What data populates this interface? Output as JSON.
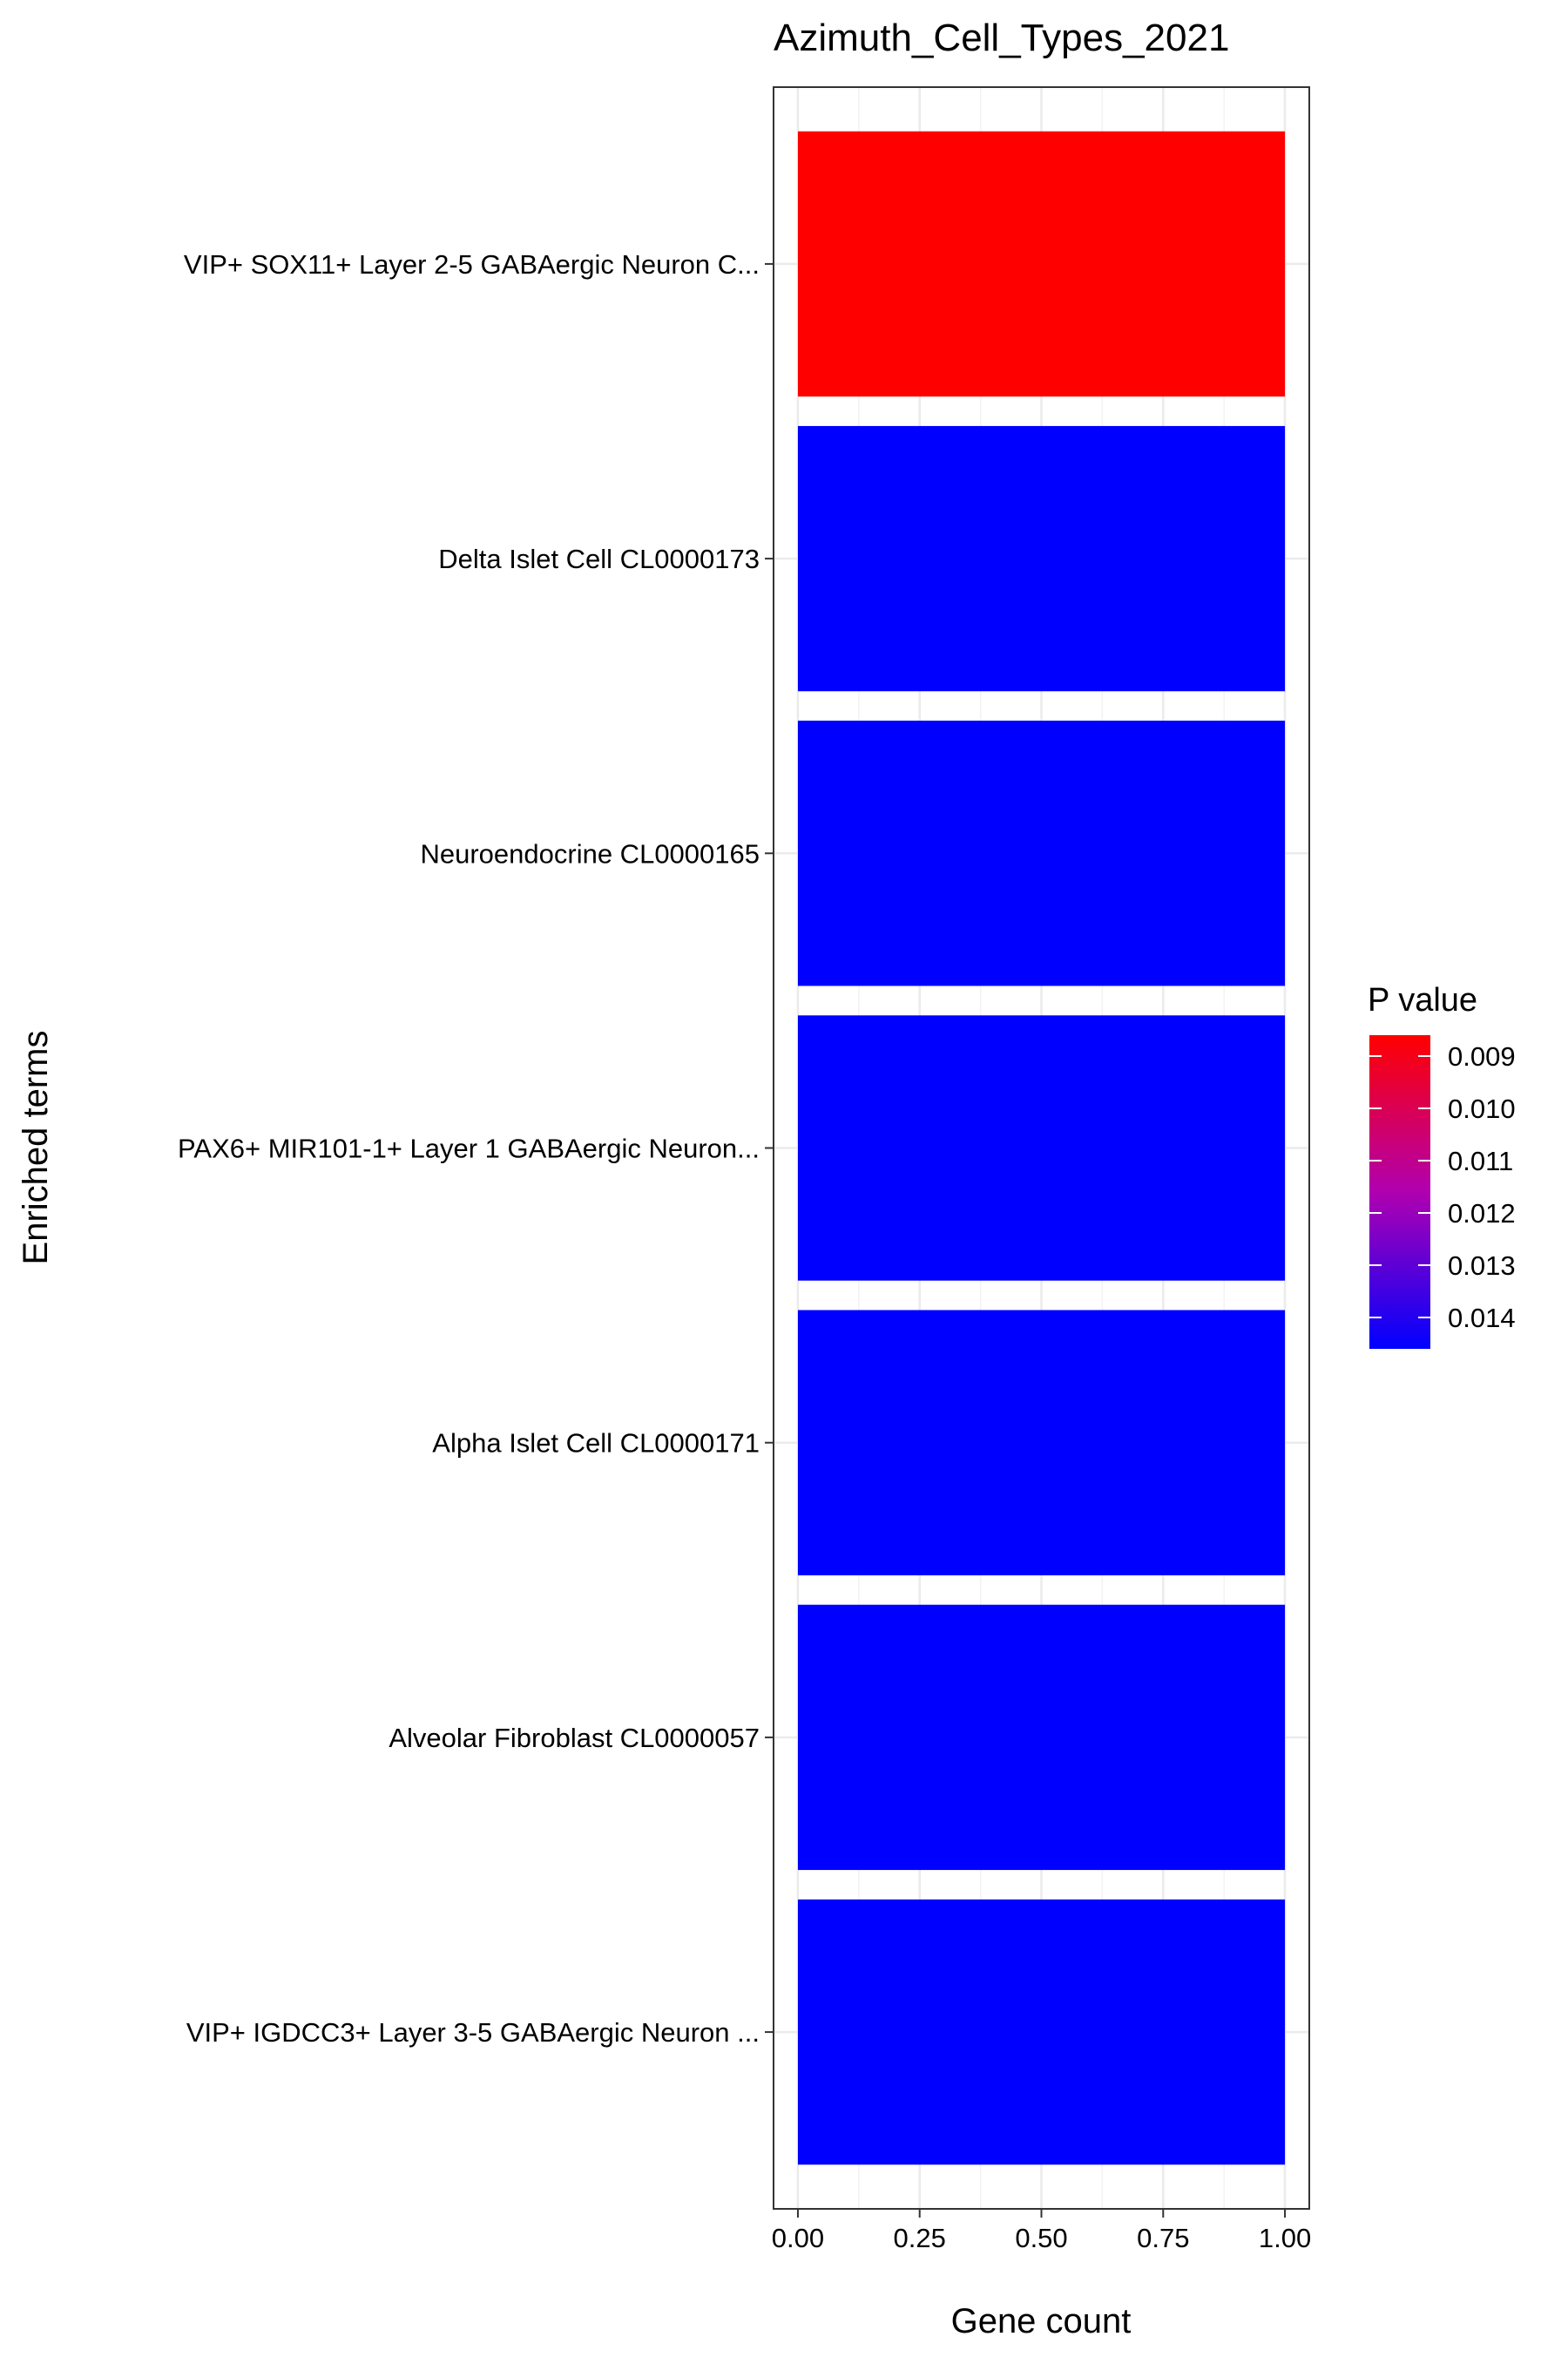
{
  "chart_data": {
    "type": "bar",
    "orientation": "horizontal",
    "title": "Azimuth_Cell_Types_2021",
    "xlabel": "Gene count",
    "ylabel": "Enriched terms",
    "xlim": [
      -0.05,
      1.05
    ],
    "xticks": [
      0.0,
      0.25,
      0.5,
      0.75,
      1.0
    ],
    "xtick_labels": [
      "0.00",
      "0.25",
      "0.50",
      "0.75",
      "1.00"
    ],
    "grid": true,
    "categories": [
      "VIP+ SOX11+ Layer 2-5 GABAergic Neuron C...",
      "Delta Islet Cell CL0000173",
      "Neuroendocrine CL0000165",
      "PAX6+ MIR101-1+ Layer 1 GABAergic Neuron...",
      "Alpha Islet Cell CL0000171",
      "Alveolar Fibroblast CL0000057",
      "VIP+ IGDCC3+ Layer 3-5 GABAergic Neuron ..."
    ],
    "values": [
      1,
      1,
      1,
      1,
      1,
      1,
      1
    ],
    "colors": [
      "#FF0000",
      "#0000FF",
      "#0000FF",
      "#0000FF",
      "#0000FF",
      "#0000FF",
      "#0000FF"
    ],
    "legend": {
      "title": "P value",
      "placement": "right",
      "type": "colorbar",
      "low_color": "#FF0000",
      "high_color": "#0000FF",
      "range": [
        0.0086,
        0.0146
      ],
      "ticks": [
        0.009,
        0.01,
        0.011,
        0.012,
        0.013,
        0.014
      ],
      "tick_labels": [
        "0.009",
        "0.010",
        "0.011",
        "0.012",
        "0.013",
        "0.014"
      ]
    }
  }
}
